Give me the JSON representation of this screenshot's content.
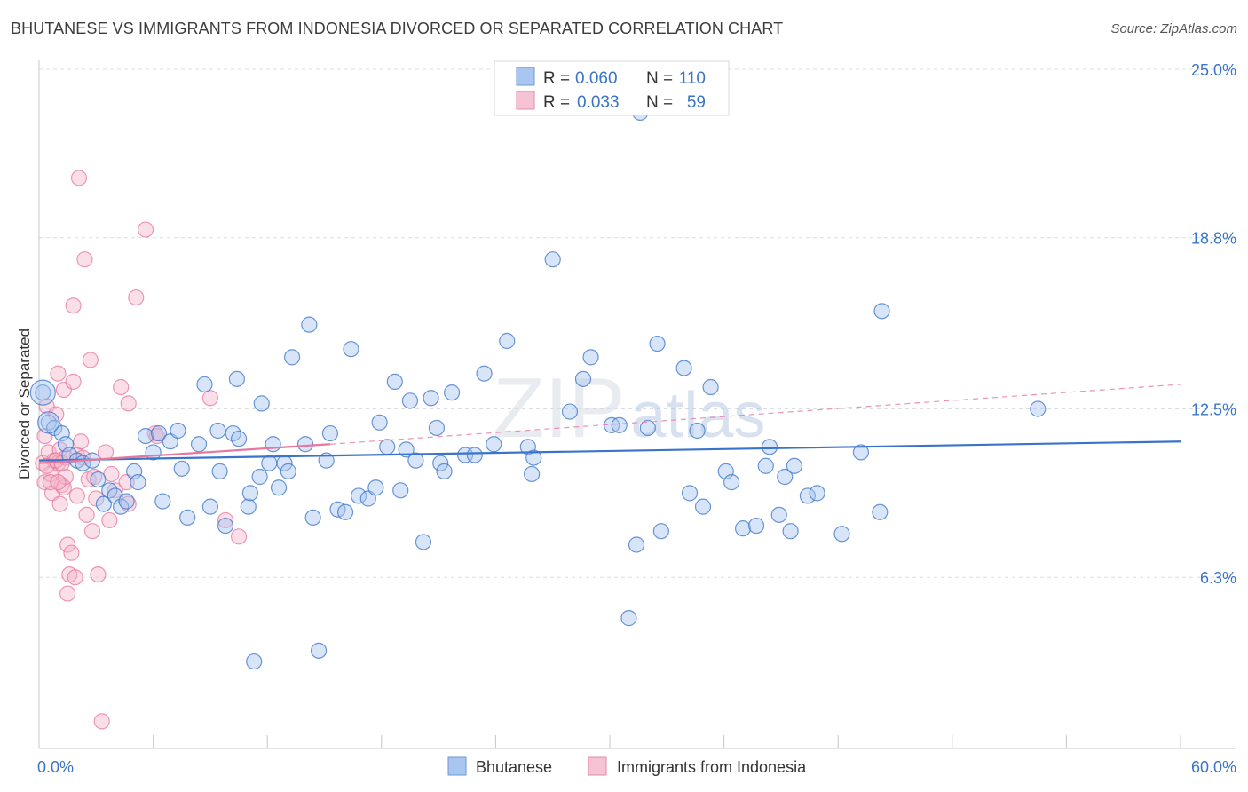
{
  "title": "BHUTANESE VS IMMIGRANTS FROM INDONESIA DIVORCED OR SEPARATED CORRELATION CHART",
  "source": "Source: ZipAtlas.com",
  "colors": {
    "blue": "#3a74c9",
    "blue_fill": "#a9c6f0",
    "pink": "#e8779d",
    "pink_fill": "#f5b8cc",
    "grid": "#d9dde3"
  },
  "chart_data": {
    "type": "scatter",
    "title": "BHUTANESE VS IMMIGRANTS FROM INDONESIA DIVORCED OR SEPARATED CORRELATION CHART",
    "xlabel": "",
    "ylabel": "Divorced or Separated",
    "xlim": [
      0,
      60
    ],
    "ylim": [
      0,
      25
    ],
    "x_tick_labels": [
      "0.0%",
      "60.0%"
    ],
    "y_ticks": [
      6.3,
      12.5,
      18.8,
      25.0
    ],
    "y_tick_labels": [
      "6.3%",
      "12.5%",
      "18.8%",
      "25.0%"
    ],
    "grid": true,
    "legend_position": "top-center",
    "legend": [
      {
        "r_label": "R =",
        "r": "0.060",
        "n_label": "N =",
        "n": "110"
      },
      {
        "r_label": "R =",
        "r": "0.033",
        "n_label": "N =",
        "n": "59"
      }
    ],
    "series": [
      {
        "name": "Bhutanese",
        "color": "#3a74c9",
        "trend": {
          "x": [
            0,
            60
          ],
          "y": [
            10.6,
            11.3
          ],
          "dashed_to": null
        },
        "points": [
          [
            0.2,
            13.1
          ],
          [
            0.5,
            12.0
          ],
          [
            0.8,
            11.8
          ],
          [
            1.2,
            11.6
          ],
          [
            1.4,
            11.2
          ],
          [
            1.6,
            10.8
          ],
          [
            2.0,
            10.6
          ],
          [
            2.3,
            10.5
          ],
          [
            2.8,
            10.6
          ],
          [
            3.1,
            9.9
          ],
          [
            3.4,
            9.0
          ],
          [
            3.7,
            9.5
          ],
          [
            4.0,
            9.3
          ],
          [
            4.3,
            8.9
          ],
          [
            4.6,
            9.1
          ],
          [
            5.0,
            10.2
          ],
          [
            5.2,
            9.8
          ],
          [
            5.6,
            11.5
          ],
          [
            6.0,
            10.9
          ],
          [
            6.3,
            11.6
          ],
          [
            6.5,
            9.1
          ],
          [
            6.9,
            11.3
          ],
          [
            7.3,
            11.7
          ],
          [
            7.5,
            10.3
          ],
          [
            7.8,
            8.5
          ],
          [
            8.4,
            11.2
          ],
          [
            8.7,
            13.4
          ],
          [
            9.0,
            8.9
          ],
          [
            9.4,
            11.7
          ],
          [
            9.5,
            10.2
          ],
          [
            9.8,
            8.2
          ],
          [
            10.2,
            11.6
          ],
          [
            10.4,
            13.6
          ],
          [
            10.5,
            11.4
          ],
          [
            11.0,
            8.9
          ],
          [
            11.1,
            9.4
          ],
          [
            11.6,
            10.0
          ],
          [
            11.7,
            12.7
          ],
          [
            12.1,
            10.5
          ],
          [
            12.3,
            11.2
          ],
          [
            12.6,
            9.6
          ],
          [
            12.9,
            10.5
          ],
          [
            13.1,
            10.2
          ],
          [
            13.3,
            14.4
          ],
          [
            14.0,
            11.2
          ],
          [
            14.2,
            15.6
          ],
          [
            14.4,
            8.5
          ],
          [
            14.7,
            3.6
          ],
          [
            15.1,
            10.6
          ],
          [
            15.3,
            11.6
          ],
          [
            15.7,
            8.8
          ],
          [
            16.1,
            8.7
          ],
          [
            16.4,
            14.7
          ],
          [
            16.8,
            9.3
          ],
          [
            17.3,
            9.2
          ],
          [
            17.7,
            9.6
          ],
          [
            17.9,
            12.0
          ],
          [
            18.3,
            11.1
          ],
          [
            18.7,
            13.5
          ],
          [
            19.0,
            9.5
          ],
          [
            19.3,
            11.0
          ],
          [
            19.5,
            12.8
          ],
          [
            19.8,
            10.6
          ],
          [
            20.2,
            7.6
          ],
          [
            20.6,
            12.9
          ],
          [
            20.9,
            11.8
          ],
          [
            21.1,
            10.5
          ],
          [
            21.3,
            10.2
          ],
          [
            21.7,
            13.1
          ],
          [
            22.4,
            10.8
          ],
          [
            22.9,
            10.8
          ],
          [
            23.4,
            13.8
          ],
          [
            23.9,
            11.2
          ],
          [
            24.6,
            15.0
          ],
          [
            25.7,
            11.1
          ],
          [
            25.9,
            10.1
          ],
          [
            26.0,
            10.7
          ],
          [
            27.0,
            18.0
          ],
          [
            27.9,
            12.4
          ],
          [
            28.6,
            13.6
          ],
          [
            29.0,
            14.4
          ],
          [
            30.1,
            11.9
          ],
          [
            30.5,
            11.9
          ],
          [
            31.0,
            4.8
          ],
          [
            31.4,
            7.5
          ],
          [
            31.6,
            23.4
          ],
          [
            32.0,
            11.8
          ],
          [
            32.5,
            14.9
          ],
          [
            32.7,
            8.0
          ],
          [
            33.9,
            14.0
          ],
          [
            34.2,
            9.4
          ],
          [
            34.6,
            11.7
          ],
          [
            34.9,
            8.9
          ],
          [
            35.3,
            13.3
          ],
          [
            36.1,
            10.2
          ],
          [
            36.4,
            9.8
          ],
          [
            37.0,
            8.1
          ],
          [
            37.7,
            8.2
          ],
          [
            38.2,
            10.4
          ],
          [
            38.4,
            11.1
          ],
          [
            38.9,
            8.6
          ],
          [
            39.2,
            10.0
          ],
          [
            39.5,
            8.0
          ],
          [
            39.7,
            10.4
          ],
          [
            40.4,
            9.3
          ],
          [
            40.9,
            9.4
          ],
          [
            42.2,
            7.9
          ],
          [
            43.2,
            10.9
          ],
          [
            44.2,
            8.7
          ],
          [
            44.3,
            16.1
          ],
          [
            52.5,
            12.5
          ],
          [
            11.3,
            3.2
          ]
        ]
      },
      {
        "name": "Immigrants from Indonesia",
        "color": "#e8779d",
        "trend": {
          "x": [
            0,
            15.3
          ],
          "y": [
            10.5,
            11.2
          ],
          "dashed_x": [
            15.3,
            60
          ],
          "dashed_y": [
            11.2,
            13.4
          ]
        },
        "points": [
          [
            0.2,
            10.5
          ],
          [
            0.3,
            9.8
          ],
          [
            0.3,
            11.5
          ],
          [
            0.4,
            12.6
          ],
          [
            0.5,
            10.9
          ],
          [
            0.6,
            10.1
          ],
          [
            0.7,
            9.4
          ],
          [
            0.8,
            10.6
          ],
          [
            0.9,
            12.3
          ],
          [
            1.0,
            13.8
          ],
          [
            1.0,
            10.5
          ],
          [
            1.1,
            9.0
          ],
          [
            1.1,
            11.0
          ],
          [
            1.2,
            9.7
          ],
          [
            1.3,
            13.2
          ],
          [
            1.3,
            9.6
          ],
          [
            1.4,
            10.0
          ],
          [
            1.5,
            7.5
          ],
          [
            1.5,
            5.7
          ],
          [
            1.6,
            6.4
          ],
          [
            1.7,
            7.2
          ],
          [
            1.8,
            13.5
          ],
          [
            1.8,
            16.3
          ],
          [
            1.9,
            6.3
          ],
          [
            2.0,
            10.8
          ],
          [
            2.0,
            9.3
          ],
          [
            2.1,
            21.0
          ],
          [
            2.2,
            11.3
          ],
          [
            2.3,
            10.7
          ],
          [
            2.4,
            18.0
          ],
          [
            2.5,
            8.6
          ],
          [
            2.6,
            9.9
          ],
          [
            2.7,
            14.3
          ],
          [
            2.8,
            8.0
          ],
          [
            2.9,
            10.0
          ],
          [
            3.0,
            9.2
          ],
          [
            3.1,
            6.4
          ],
          [
            3.3,
            1.0
          ],
          [
            3.5,
            10.9
          ],
          [
            3.7,
            8.4
          ],
          [
            3.8,
            10.1
          ],
          [
            4.0,
            9.5
          ],
          [
            4.3,
            13.3
          ],
          [
            4.6,
            9.8
          ],
          [
            4.7,
            9.0
          ],
          [
            4.7,
            12.7
          ],
          [
            5.1,
            16.6
          ],
          [
            5.6,
            19.1
          ],
          [
            6.1,
            11.6
          ],
          [
            6.2,
            11.5
          ],
          [
            0.4,
            10.4
          ],
          [
            0.6,
            9.8
          ],
          [
            1.0,
            9.8
          ],
          [
            1.4,
            10.7
          ],
          [
            9.0,
            12.9
          ],
          [
            9.8,
            8.4
          ],
          [
            10.5,
            7.8
          ],
          [
            0.9,
            10.6
          ],
          [
            1.2,
            10.5
          ]
        ]
      }
    ]
  }
}
